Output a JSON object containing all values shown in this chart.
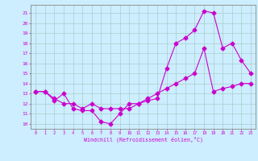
{
  "xlabel": "Windchill (Refroidissement éolien,°C)",
  "background_color": "#cceeff",
  "grid_color": "#aacccc",
  "line_color": "#cc00cc",
  "xlim": [
    -0.5,
    23.5
  ],
  "ylim": [
    9.5,
    21.8
  ],
  "yticks": [
    10,
    11,
    12,
    13,
    14,
    15,
    16,
    17,
    18,
    19,
    20,
    21
  ],
  "xticks": [
    0,
    1,
    2,
    3,
    4,
    5,
    6,
    7,
    8,
    9,
    10,
    11,
    12,
    13,
    14,
    15,
    16,
    17,
    18,
    19,
    20,
    21,
    22,
    23
  ],
  "series1_x": [
    0,
    1,
    2,
    3,
    4,
    5,
    6,
    7,
    8,
    9,
    10,
    11,
    12,
    13,
    14,
    15,
    16,
    17,
    18,
    19,
    20,
    21,
    22,
    23
  ],
  "series1_y": [
    13.2,
    13.2,
    12.3,
    13.0,
    11.5,
    11.3,
    11.3,
    10.2,
    10.0,
    11.0,
    12.0,
    12.0,
    12.3,
    12.5,
    15.5,
    18.0,
    18.5,
    19.3,
    21.2,
    21.0,
    17.5,
    18.0,
    16.3,
    15.0
  ],
  "series2_x": [
    0,
    1,
    2,
    3,
    4,
    5,
    6,
    7,
    8,
    9,
    10,
    11,
    12,
    13,
    14,
    15,
    16,
    17,
    18,
    19,
    20,
    21,
    22,
    23
  ],
  "series2_y": [
    13.2,
    13.2,
    12.5,
    12.0,
    12.0,
    11.5,
    12.0,
    11.5,
    11.5,
    11.5,
    11.5,
    12.0,
    12.5,
    13.0,
    13.5,
    14.0,
    14.5,
    15.0,
    17.5,
    13.2,
    13.5,
    13.7,
    14.0,
    14.0
  ]
}
